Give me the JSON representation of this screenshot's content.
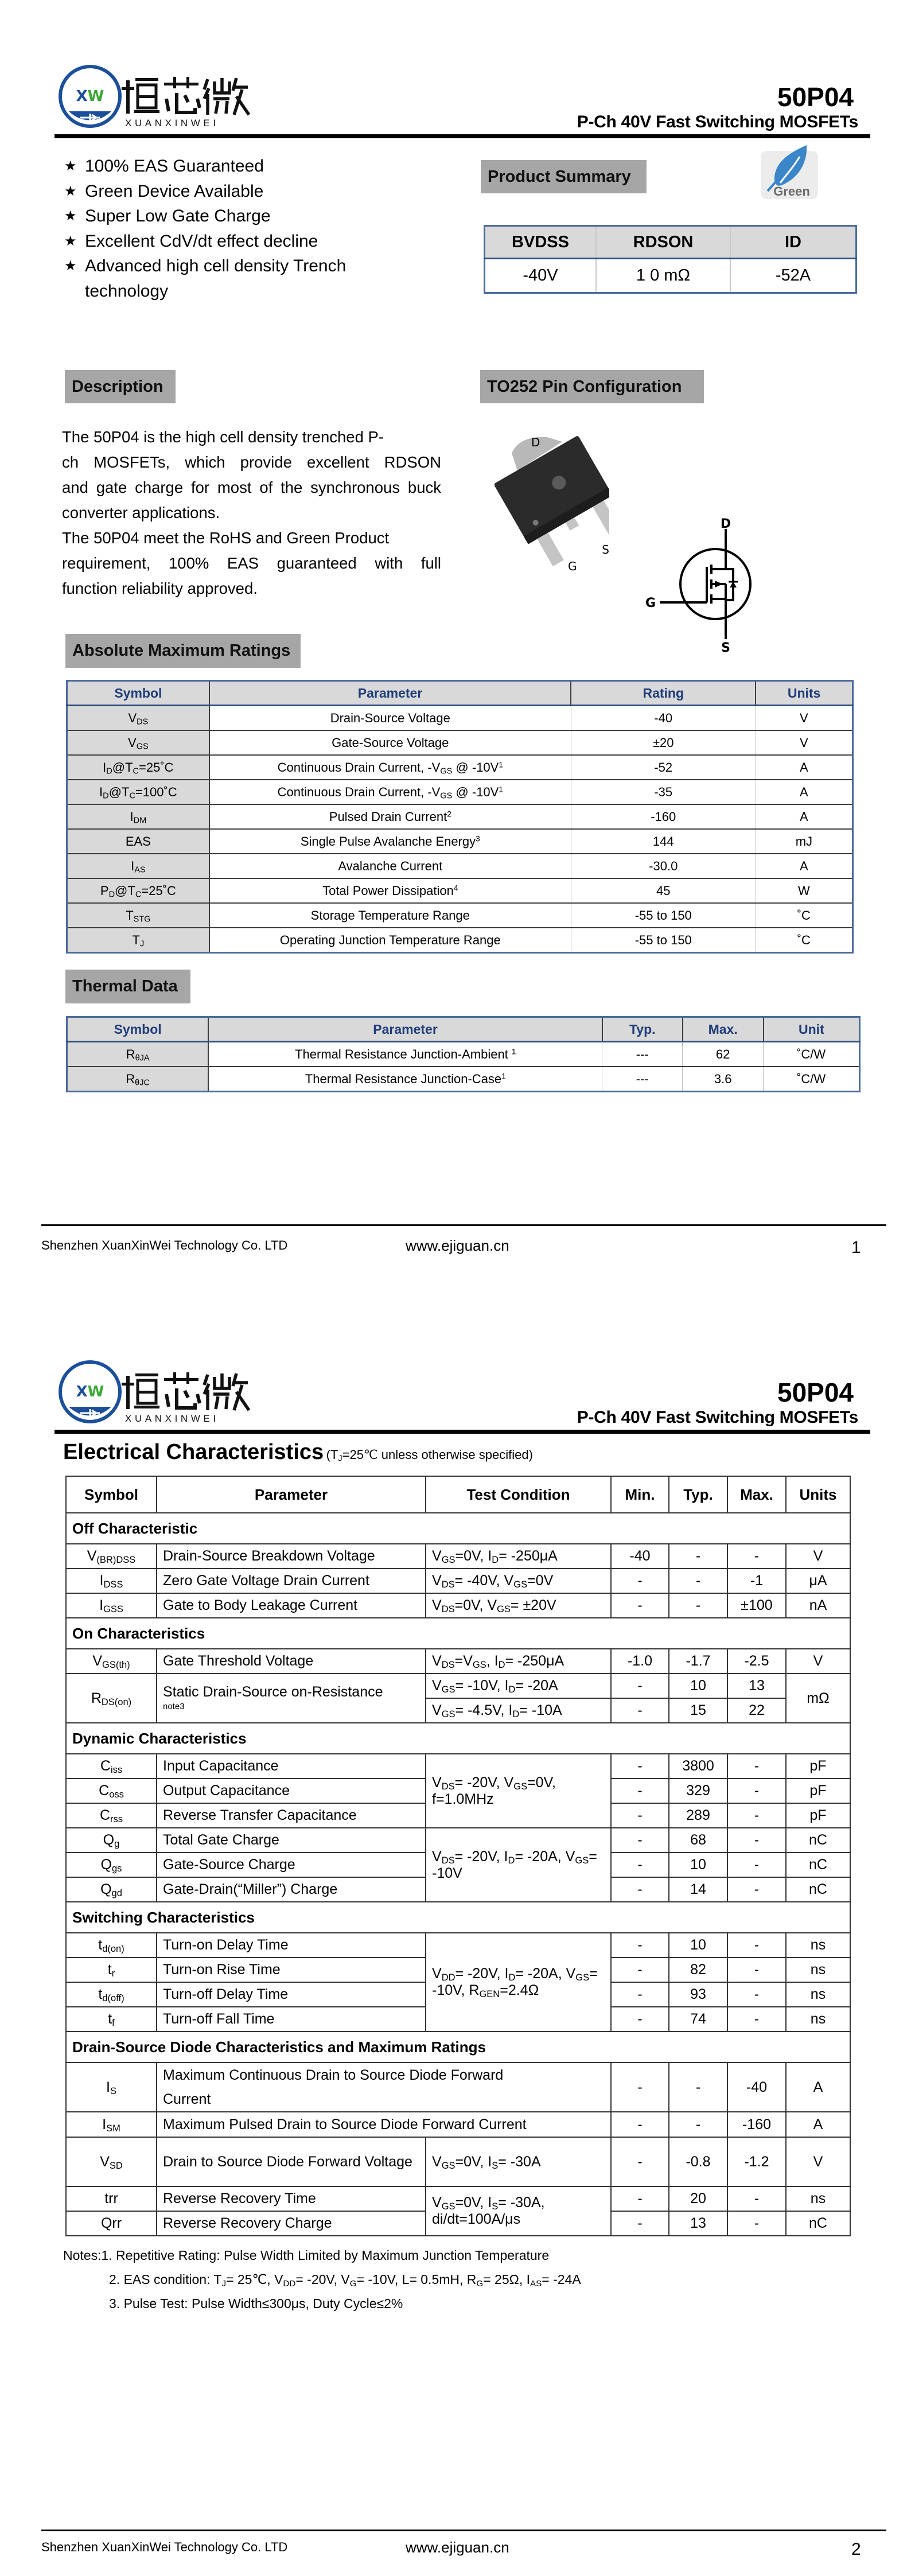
{
  "logo": {
    "cn_text": "烜芯微",
    "en_text": "XUANXINWEI",
    "mark_text": "XW",
    "colors": {
      "blue": "#1b4f9c",
      "green": "#3aa935"
    }
  },
  "header": {
    "part_number": "50P04",
    "subtitle": "P-Ch 40V Fast Switching MOSFETs"
  },
  "features": [
    "100% EAS Guaranteed",
    "Green Device Available",
    "Super Low Gate Charge",
    "Excellent CdV/dt effect decline",
    "Advanced high cell density Trench",
    "technology"
  ],
  "bullet_icon": "star-icon",
  "product_summary": {
    "title": "Product Summary",
    "badge": {
      "icon": "leaf-icon",
      "label": "Green",
      "color": "#3a86c8"
    },
    "headers": [
      "BVDSS",
      "RDSON",
      "ID"
    ],
    "values": [
      "-40V",
      "1 0 mΩ",
      "-52A"
    ]
  },
  "description": {
    "title": "Description",
    "lines": [
      {
        "text": "The 50P04 is the high cell density trenched P-",
        "justify": false
      },
      {
        "text": "ch MOSFETs, which provide excellent RDSON",
        "justify": true
      },
      {
        "text": "and gate charge for most of the synchronous buck",
        "justify": true
      },
      {
        "text": "converter applications.",
        "justify": false
      },
      {
        "text": "The 50P04 meet the RoHS and Green Product",
        "justify": false
      },
      {
        "text": "requirement, 100% EAS guaranteed with full",
        "justify": true
      },
      {
        "text": "function reliability approved.",
        "justify": false
      }
    ]
  },
  "pin_config": {
    "title": "TO252 Pin Configuration",
    "package_labels": {
      "d": "D",
      "g": "G",
      "s": "S"
    },
    "symbol_labels": {
      "d": "D",
      "g": "G",
      "s": "S"
    }
  },
  "abs_max": {
    "title": "Absolute Maximum Ratings",
    "headers": [
      "Symbol",
      "Parameter",
      "Rating",
      "Units"
    ],
    "rows": [
      [
        "V{DS}",
        "Drain-Source Voltage",
        "-40",
        "V"
      ],
      [
        "V{GS}",
        "Gate-Source Voltage",
        "±20",
        "V"
      ],
      [
        "I{D}@T{C}=25˚C",
        "Continuous Drain Current, -V{GS} @ -10V^{1}",
        "-52",
        "A"
      ],
      [
        "I{D}@T{C}=100˚C",
        "Continuous Drain Current, -V{GS} @ -10V^{1}",
        "-35",
        "A"
      ],
      [
        "I{DM}",
        "Pulsed Drain Current^{2}",
        "-160",
        "A"
      ],
      [
        "EAS",
        "Single Pulse Avalanche Energy^{3}",
        "144",
        "mJ"
      ],
      [
        "I{AS}",
        "Avalanche Current",
        "-30.0",
        "A"
      ],
      [
        "P{D}@T{C}=25˚C",
        "Total Power Dissipation^{4}",
        "45",
        "W"
      ],
      [
        "T{STG}",
        "Storage Temperature Range",
        "-55 to 150",
        "˚C"
      ],
      [
        "T{J}",
        "Operating Junction Temperature Range",
        "-55 to 150",
        "˚C"
      ]
    ]
  },
  "thermal": {
    "title": "Thermal Data",
    "headers": [
      "Symbol",
      "Parameter",
      "Typ.",
      "Max.",
      "Unit"
    ],
    "rows": [
      [
        "R{θJA}",
        "Thermal Resistance Junction-Ambient ^{1}",
        "---",
        "62",
        "˚C/W"
      ],
      [
        "R{θJC}",
        "Thermal Resistance Junction-Case^{1}",
        "---",
        "3.6",
        "˚C/W"
      ]
    ]
  },
  "footer": {
    "company": "Shenzhen XuanXinWei Technology Co. LTD",
    "website": "www.ejiguan.cn",
    "pages": [
      "1",
      "2"
    ]
  },
  "electrical": {
    "title": "Electrical Characteristics",
    "condition": "(T{J}=25℃ unless otherwise specified)",
    "headers": [
      "Symbol",
      "Parameter",
      "Test Condition",
      "Min.",
      "Typ.",
      "Max.",
      "Units"
    ],
    "sections": [
      {
        "title": "Off Characteristic",
        "rows": [
          {
            "sym": "V{(BR)DSS}",
            "param": "Drain-Source Breakdown Voltage",
            "cond": "V{GS}=0V, I{D}= -250μA",
            "min": "-40",
            "typ": "-",
            "max": "-",
            "unit": "V"
          },
          {
            "sym": "I{DSS}",
            "param": "Zero Gate Voltage Drain Current",
            "cond": "V{DS}= -40V, V{GS}=0V",
            "min": "-",
            "typ": "-",
            "max": "-1",
            "unit": "μA"
          },
          {
            "sym": "I{GSS}",
            "param": "Gate to Body Leakage Current",
            "cond": "V{DS}=0V, V{GS}= ±20V",
            "min": "-",
            "typ": "-",
            "max": "±100",
            "unit": "nA"
          }
        ]
      },
      {
        "title": "On Characteristics",
        "rows": [
          {
            "sym": "V{GS(th)}",
            "param": "Gate Threshold Voltage",
            "cond": "V{DS}=V{GS}, I{D}= -250μA",
            "min": "-1.0",
            "typ": "-1.7",
            "max": "-2.5",
            "unit": "V"
          },
          {
            "sym": "R{DS(on)}",
            "sym_rs": 2,
            "param": "Static Drain-Source on-Resistance",
            "note": "note3",
            "param_rs": 2,
            "cond": "V{GS}= -10V, I{D}= -20A",
            "min": "-",
            "typ": "10",
            "max": "13",
            "unit": "mΩ",
            "unit_rs": 2
          },
          {
            "cond": "V{GS}= -4.5V, I{D}= -10A",
            "min": "-",
            "typ": "15",
            "max": "22"
          }
        ]
      },
      {
        "title": "Dynamic Characteristics",
        "rows": [
          {
            "sym": "C{iss}",
            "param": "Input Capacitance",
            "cond": "V{DS}= -20V, V{GS}=0V, f=1.0MHz",
            "cond_rs": 3,
            "min": "-",
            "typ": "3800",
            "max": "-",
            "unit": "pF"
          },
          {
            "sym": "C{oss}",
            "param": "Output Capacitance",
            "min": "-",
            "typ": "329",
            "max": "-",
            "unit": "pF"
          },
          {
            "sym": "C{rss}",
            "param": "Reverse Transfer Capacitance",
            "min": "-",
            "typ": "289",
            "max": "-",
            "unit": "pF"
          },
          {
            "sym": "Q{g}",
            "param": "Total Gate Charge",
            "cond": "V{DS}= -20V, I{D}= -20A, V{GS}= -10V",
            "cond_rs": 3,
            "min": "-",
            "typ": "68",
            "max": "-",
            "unit": "nC"
          },
          {
            "sym": "Q{gs}",
            "param": "Gate-Source Charge",
            "min": "-",
            "typ": "10",
            "max": "-",
            "unit": "nC"
          },
          {
            "sym": "Q{gd}",
            "param": "Gate-Drain(“Miller”) Charge",
            "min": "-",
            "typ": "14",
            "max": "-",
            "unit": "nC"
          }
        ]
      },
      {
        "title": "Switching Characteristics",
        "rows": [
          {
            "sym": "t{d(on)}",
            "param": "Turn-on Delay Time",
            "cond": "V{DD}= -20V, I{D}= -20A, V{GS}= -10V, R{GEN}=2.4Ω",
            "cond_rs": 4,
            "min": "-",
            "typ": "10",
            "max": "-",
            "unit": "ns"
          },
          {
            "sym": "t{r}",
            "param": "Turn-on Rise Time",
            "min": "-",
            "typ": "82",
            "max": "-",
            "unit": "ns"
          },
          {
            "sym": "t{d(off)}",
            "param": "Turn-off Delay Time",
            "min": "-",
            "typ": "93",
            "max": "-",
            "unit": "ns"
          },
          {
            "sym": "t{f}",
            "param": "Turn-off Fall Time",
            "min": "-",
            "typ": "74",
            "max": "-",
            "unit": "ns"
          }
        ]
      },
      {
        "title": "Drain-Source Diode Characteristics and Maximum Ratings",
        "rows": [
          {
            "sym": "I{S}",
            "param": "Maximum Continuous Drain to Source Diode Forward Current",
            "param_cs": 2,
            "tall": true,
            "min": "-",
            "typ": "-",
            "max": "-40",
            "unit": "A"
          },
          {
            "sym": "I{SM}",
            "param": "Maximum Pulsed Drain to Source Diode Forward Current",
            "param_cs": 2,
            "min": "-",
            "typ": "-",
            "max": "-160",
            "unit": "A"
          },
          {
            "sym": "V{SD}",
            "param": "Drain to Source Diode Forward Voltage",
            "tall": true,
            "cond": "V{GS}=0V, I{S}= -30A",
            "min": "-",
            "typ": "-0.8",
            "max": "-1.2",
            "unit": "V"
          },
          {
            "sym": "trr",
            "param": "Reverse Recovery Time",
            "cond": "V{GS}=0V, I{S}= -30A, di/dt=100A/μs",
            "cond_rs": 2,
            "min": "-",
            "typ": "20",
            "max": "-",
            "unit": "ns"
          },
          {
            "sym": "Qrr",
            "param": "Reverse Recovery Charge",
            "min": "-",
            "typ": "13",
            "max": "-",
            "unit": "nC"
          }
        ]
      }
    ],
    "notes": [
      "Notes:1. Repetitive Rating: Pulse Width Limited by Maximum Junction Temperature",
      "2. EAS condition: T{J}= 25℃, V{DD}= -20V, V{G}= -10V, L= 0.5mH, R{G}= 25Ω, I{AS}= -24A",
      "3. Pulse Test: Pulse Width≤300μs, Duty Cycle≤2%"
    ]
  }
}
